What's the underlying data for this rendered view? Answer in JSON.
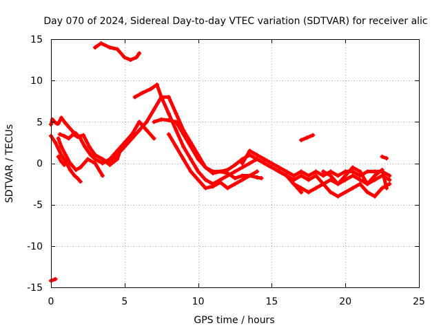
{
  "chart_data": {
    "type": "scatter",
    "title": "Day 070 of 2024, Sidereal Day-to-day VTEC variation (SDTVAR) for receiver alic",
    "xlabel": "GPS time / hours",
    "ylabel": "SDTVAR / TECUs",
    "xlim": [
      0,
      25
    ],
    "ylim": [
      -15,
      15
    ],
    "xticks": [
      0,
      5,
      10,
      15,
      20,
      25
    ],
    "yticks": [
      -15,
      -10,
      -5,
      0,
      5,
      10,
      15
    ],
    "xtick_labels": [
      "0",
      "5",
      "10",
      "15",
      "20",
      "25"
    ],
    "ytick_labels": [
      "-15",
      "-10",
      "-5",
      "0",
      "5",
      "10",
      "15"
    ],
    "grid": true,
    "color": "#ff0000",
    "series": [
      {
        "name": "track-1",
        "x": [
          3.0,
          3.4,
          4.0,
          4.5,
          5.0,
          5.4,
          5.8,
          6.0
        ],
        "y": [
          14.0,
          14.5,
          14.0,
          13.8,
          12.8,
          12.5,
          12.8,
          13.3
        ]
      },
      {
        "name": "track-2",
        "x": [
          0.0,
          0.3,
          0.7,
          1.0,
          1.3,
          1.6,
          1.8,
          2.0
        ],
        "y": [
          3.3,
          2.5,
          1.0,
          0.2,
          -0.8,
          -1.5,
          -1.8,
          -2.2
        ]
      },
      {
        "name": "track-3",
        "x": [
          0.0,
          0.1,
          0.25,
          0.4
        ],
        "y": [
          4.7,
          5.3,
          5.0,
          4.8
        ]
      },
      {
        "name": "track-4",
        "x": [
          0.5,
          0.7,
          1.0,
          1.3,
          1.5,
          1.7,
          2.0,
          2.3,
          2.7,
          3.0,
          3.5,
          4.0,
          4.5,
          5.0,
          5.5,
          6.0,
          6.5,
          7.0
        ],
        "y": [
          4.8,
          5.5,
          4.8,
          4.2,
          3.8,
          3.6,
          3.0,
          2.0,
          1.0,
          0.5,
          0.0,
          0.5,
          1.5,
          2.5,
          3.5,
          5.0,
          4.0,
          3.0
        ]
      },
      {
        "name": "track-5",
        "x": [
          0.5,
          0.7,
          1.0,
          1.3,
          1.7,
          2.0,
          2.5,
          3.0,
          3.5
        ],
        "y": [
          3.0,
          2.0,
          1.0,
          0.0,
          -0.8,
          -0.5,
          0.5,
          0.0,
          -1.5
        ]
      },
      {
        "name": "track-6",
        "x": [
          0.6,
          0.9,
          1.2,
          1.5,
          1.8,
          2.2,
          2.6,
          3.0,
          3.5,
          4.0,
          4.5,
          4.8
        ],
        "y": [
          3.5,
          3.3,
          3.0,
          3.5,
          3.2,
          3.4,
          2.0,
          1.0,
          0.5,
          -0.2,
          0.5,
          2.0
        ]
      },
      {
        "name": "track-7",
        "x": [
          0.5,
          0.7,
          0.9
        ],
        "y": [
          0.8,
          0.2,
          -0.2
        ]
      },
      {
        "name": "track-8",
        "x": [
          3.0,
          3.5,
          4.0,
          4.5,
          5.0,
          5.5,
          6.0,
          6.5,
          7.0,
          7.5,
          8.0,
          8.5,
          9.0,
          9.5,
          10.0,
          10.5,
          11.0,
          11.5,
          12.0,
          12.5,
          13.0,
          13.5,
          14.0,
          14.5,
          14.8
        ],
        "y": [
          1.0,
          0.5,
          0.0,
          1.0,
          2.0,
          3.0,
          4.0,
          5.0,
          6.5,
          8.0,
          8.0,
          6.0,
          4.0,
          2.5,
          1.0,
          -0.5,
          -1.2,
          -1.0,
          -0.8,
          -0.2,
          0.5,
          1.0,
          0.5,
          0.0,
          -0.3
        ]
      },
      {
        "name": "track-9",
        "x": [
          5.7,
          6.2,
          6.8,
          7.2,
          7.5,
          8.0,
          8.5,
          9.0,
          9.5,
          10.0,
          10.5,
          11.0,
          11.5,
          12.0,
          12.5,
          13.0,
          13.5,
          14.0,
          14.5,
          15.0,
          15.5,
          16.0,
          16.5,
          17.0
        ],
        "y": [
          8.0,
          8.5,
          9.0,
          9.5,
          8.0,
          6.0,
          4.0,
          2.0,
          0.5,
          -1.0,
          -2.0,
          -2.5,
          -2.0,
          -1.5,
          -1.0,
          -0.5,
          0.0,
          0.5,
          0.0,
          -0.5,
          -1.0,
          -1.5,
          -2.5,
          -3.5
        ]
      },
      {
        "name": "track-10",
        "x": [
          7.0,
          7.5,
          8.0,
          8.5,
          9.0,
          9.5,
          10.0,
          10.5,
          11.0,
          11.5,
          12.0,
          12.5,
          13.0,
          13.5,
          14.0,
          14.3
        ],
        "y": [
          5.0,
          5.3,
          5.2,
          5.0,
          3.5,
          2.0,
          0.5,
          -0.5,
          -1.0,
          -1.0,
          -1.2,
          -1.8,
          -1.5,
          -1.5,
          -1.7,
          -1.8
        ]
      },
      {
        "name": "track-11",
        "x": [
          8.0,
          8.5,
          9.0,
          9.5,
          10.0,
          10.5,
          11.0,
          11.5,
          12.0,
          12.5,
          13.0,
          13.5,
          14.0
        ],
        "y": [
          3.5,
          2.0,
          0.5,
          -1.0,
          -2.0,
          -3.0,
          -2.8,
          -2.3,
          -3.0,
          -2.5,
          -2.0,
          -1.5,
          -1.0
        ]
      },
      {
        "name": "track-12",
        "x": [
          13.0,
          13.5,
          14.0,
          14.5,
          15.0,
          15.5,
          16.0,
          16.5,
          17.0,
          17.5,
          18.0,
          18.5,
          19.0,
          19.5,
          20.0,
          20.5,
          21.0,
          21.5,
          22.0,
          22.5,
          23.0
        ],
        "y": [
          0.0,
          1.5,
          1.0,
          0.5,
          0.0,
          -0.5,
          -1.0,
          -1.5,
          -1.0,
          -1.5,
          -1.0,
          -1.5,
          -1.0,
          -1.5,
          -1.0,
          -1.0,
          -1.5,
          -1.0,
          -1.0,
          -1.0,
          -1.5
        ]
      },
      {
        "name": "track-13",
        "x": [
          14.5,
          15.0,
          15.5,
          16.0,
          16.5,
          17.0,
          17.5,
          18.0,
          18.5,
          19.0,
          19.5,
          20.0,
          20.5,
          21.0,
          21.5,
          22.0,
          22.5,
          23.0
        ],
        "y": [
          0.0,
          -0.5,
          -1.0,
          -1.5,
          -2.5,
          -3.0,
          -3.5,
          -3.0,
          -2.5,
          -2.0,
          -2.5,
          -2.0,
          -1.5,
          -2.0,
          -2.5,
          -2.0,
          -1.5,
          -2.0
        ]
      },
      {
        "name": "track-14",
        "x": [
          15.0,
          15.5,
          16.0,
          16.5,
          17.0,
          17.5,
          18.0,
          18.5,
          19.0,
          19.5,
          20.0,
          20.5,
          21.0,
          21.5,
          22.0,
          22.5,
          23.0
        ],
        "y": [
          -0.5,
          -1.0,
          -1.5,
          -2.0,
          -1.5,
          -2.0,
          -1.5,
          -2.5,
          -3.5,
          -4.0,
          -3.5,
          -3.0,
          -2.5,
          -3.5,
          -4.0,
          -3.0,
          -2.5
        ]
      },
      {
        "name": "track-15",
        "x": [
          18.5,
          19.0,
          19.5,
          20.0,
          20.5,
          21.0,
          21.5,
          22.0,
          22.5,
          22.8
        ],
        "y": [
          -1.0,
          -1.5,
          -2.5,
          -1.5,
          -0.5,
          -1.0,
          -2.5,
          -1.5,
          -0.8,
          -3.0
        ]
      },
      {
        "name": "track-16",
        "x": [
          17.0,
          17.4,
          17.8
        ],
        "y": [
          2.8,
          3.1,
          3.4
        ]
      },
      {
        "name": "track-17",
        "x": [
          22.5,
          22.8
        ],
        "y": [
          0.8,
          0.6
        ]
      },
      {
        "name": "track-18",
        "x": [
          0.0,
          0.3
        ],
        "y": [
          -14.2,
          -14.0
        ]
      }
    ]
  }
}
